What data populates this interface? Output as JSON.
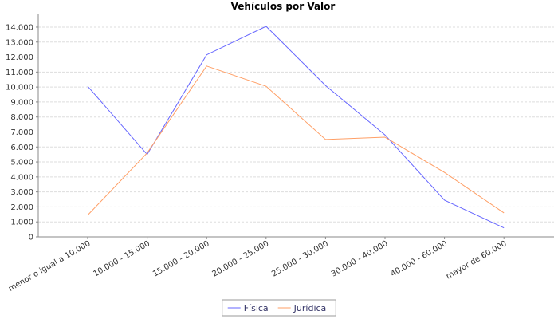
{
  "chart_data": {
    "type": "line",
    "title": "Vehículos por Valor",
    "categories": [
      "menor o igual a 10.000",
      "10.000 - 15.000",
      "15.000 - 20.000",
      "20.000 - 25.000",
      "25.000 - 30.000",
      "30.000 - 40.000",
      "40.000 - 60.000",
      "mayor de 60.000"
    ],
    "series": [
      {
        "name": "Física",
        "color": "#6666ff",
        "values": [
          10050,
          5500,
          12150,
          14050,
          10100,
          6800,
          2450,
          600
        ]
      },
      {
        "name": "Jurídica",
        "color": "#ff9f66",
        "values": [
          1450,
          5600,
          11400,
          10050,
          6500,
          6650,
          4300,
          1600
        ]
      }
    ],
    "ylim": [
      0,
      14850
    ],
    "yticks": [
      0,
      {
        "value": 1000,
        "label": "1.000"
      },
      {
        "value": 2000,
        "label": "2.000"
      },
      {
        "value": 3000,
        "label": "3.000"
      },
      {
        "value": 4000,
        "label": "4.000"
      },
      {
        "value": 5000,
        "label": "5.000"
      },
      {
        "value": 6000,
        "label": "6.000"
      },
      {
        "value": 7000,
        "label": "7.000"
      },
      {
        "value": 8000,
        "label": "8.000"
      },
      {
        "value": 9000,
        "label": "9.000"
      },
      {
        "value": 10000,
        "label": "10.000"
      },
      {
        "value": 11000,
        "label": "11.000"
      },
      {
        "value": 12000,
        "label": "12.000"
      },
      {
        "value": 13000,
        "label": "13.000"
      },
      {
        "value": 14000,
        "label": "14.000"
      }
    ],
    "grid": true
  }
}
